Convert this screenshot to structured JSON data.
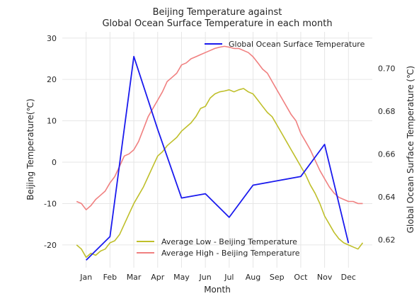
{
  "chart_data": {
    "type": "line",
    "title_line1": "Beijing Temperature against",
    "title_line2": "Global Ocean Surface Temperature in each month",
    "xlabel": "Month",
    "ylabel_left": "Beijing Temperature(℃)",
    "ylabel_right": "Global Ocean Surface Temperature (℃)",
    "categories": [
      "Jan",
      "Feb",
      "Mar",
      "Apr",
      "May",
      "Jun",
      "Jul",
      "Aug",
      "Sep",
      "Oct",
      "Nov",
      "Dec"
    ],
    "xlim": [
      0,
      13
    ],
    "ylim_left": [
      -25.5,
      31.5
    ],
    "yticks_left": [
      -20,
      -10,
      0,
      10,
      20,
      30
    ],
    "ylim_right": [
      0.607,
      0.717
    ],
    "yticks_right": [
      0.62,
      0.64,
      0.66,
      0.68,
      0.7
    ],
    "grid": true,
    "series_daily": [
      {
        "name": "Average Low - Beijing Temperature",
        "axis": "left",
        "color": "#bfbf2a",
        "x": [
          0.6,
          0.8,
          1.0,
          1.2,
          1.4,
          1.6,
          1.8,
          2.0,
          2.2,
          2.4,
          2.6,
          2.8,
          3.0,
          3.2,
          3.4,
          3.6,
          3.8,
          4.0,
          4.2,
          4.4,
          4.6,
          4.8,
          5.0,
          5.2,
          5.4,
          5.6,
          5.8,
          6.0,
          6.2,
          6.4,
          6.6,
          6.8,
          7.0,
          7.2,
          7.4,
          7.6,
          7.8,
          8.0,
          8.2,
          8.4,
          8.6,
          8.8,
          9.0,
          9.2,
          9.4,
          9.6,
          9.8,
          10.0,
          10.2,
          10.4,
          10.6,
          10.8,
          11.0,
          11.2,
          11.4,
          11.6,
          11.8,
          12.0,
          12.2,
          12.4,
          12.6
        ],
        "y": [
          -20,
          -21,
          -23,
          -22,
          -22.5,
          -21.5,
          -21,
          -19.5,
          -19,
          -17.5,
          -15,
          -12.5,
          -10,
          -8,
          -6,
          -3.5,
          -1,
          1.5,
          2.5,
          4,
          5,
          6,
          7.5,
          8.5,
          9.5,
          11,
          13,
          13.5,
          15.5,
          16.5,
          17,
          17.2,
          17.5,
          17,
          17.5,
          17.8,
          17,
          16.5,
          15,
          13.5,
          12,
          11,
          9,
          7,
          5,
          3,
          1,
          -1,
          -3,
          -5.5,
          -7.5,
          -10,
          -13,
          -15,
          -17,
          -18.5,
          -19.5,
          -20,
          -20.5,
          -21,
          -19.5
        ]
      },
      {
        "name": "Average High - Beijing Temperature",
        "axis": "left",
        "color": "#f08080",
        "x": [
          0.6,
          0.8,
          1.0,
          1.2,
          1.4,
          1.6,
          1.8,
          2.0,
          2.2,
          2.4,
          2.6,
          2.8,
          3.0,
          3.2,
          3.4,
          3.6,
          3.8,
          4.0,
          4.2,
          4.4,
          4.6,
          4.8,
          5.0,
          5.2,
          5.4,
          5.6,
          5.8,
          6.0,
          6.2,
          6.4,
          6.6,
          6.8,
          7.0,
          7.2,
          7.4,
          7.6,
          7.8,
          8.0,
          8.2,
          8.4,
          8.6,
          8.8,
          9.0,
          9.2,
          9.4,
          9.6,
          9.8,
          10.0,
          10.2,
          10.4,
          10.6,
          10.8,
          11.0,
          11.2,
          11.4,
          11.6,
          11.8,
          12.0,
          12.2,
          12.4,
          12.6
        ],
        "y": [
          -9.5,
          -10,
          -11.5,
          -10.5,
          -9,
          -8,
          -7,
          -5,
          -3.5,
          -1,
          1.5,
          2,
          3,
          5,
          8,
          11,
          13,
          15,
          17,
          19.5,
          20.5,
          21.5,
          23.5,
          24,
          25,
          25.5,
          26,
          26.5,
          27,
          27.5,
          27.8,
          28,
          27.8,
          27.5,
          27.5,
          27,
          26.5,
          25.5,
          24,
          22.5,
          21.5,
          19.5,
          17.5,
          15.5,
          13.5,
          11.5,
          10,
          7,
          5,
          3,
          0.5,
          -2,
          -4,
          -6,
          -7.5,
          -8.5,
          -9,
          -9.5,
          -9.5,
          -10,
          -10
        ]
      },
      {
        "name": "Global Ocean Surface Temperature",
        "axis": "right",
        "color": "#1a1aee",
        "x": [
          1,
          2,
          3,
          4,
          5,
          6,
          7,
          8,
          9,
          10,
          11,
          12
        ],
        "y": [
          0.6105,
          0.6215,
          0.7055,
          0.6715,
          0.6395,
          0.6415,
          0.6305,
          0.6455,
          0.6475,
          0.6495,
          0.6645,
          0.6185
        ]
      }
    ],
    "legend_top": "top-right",
    "legend_bottom": "lower-center"
  }
}
